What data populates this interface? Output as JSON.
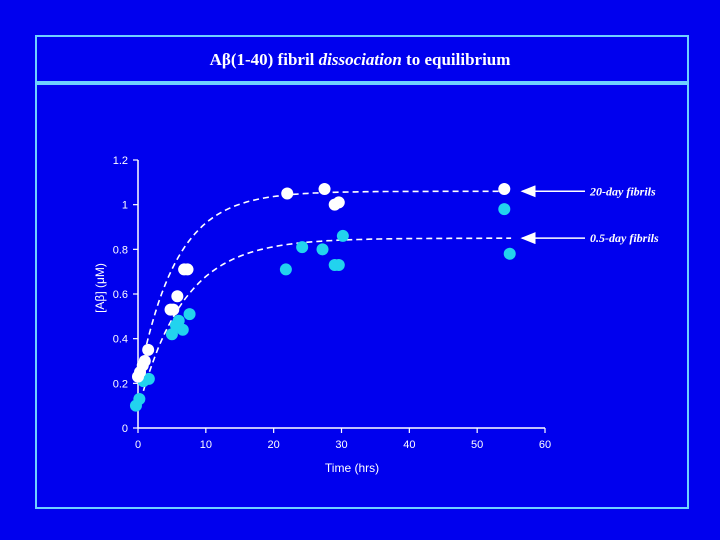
{
  "title": {
    "prefix": "Aβ(1-40) fibril ",
    "emphasis": "dissociation",
    "suffix": " to equilibrium"
  },
  "colors": {
    "background": "#0000ee",
    "frame": "#6fd0ff",
    "series_20day": "#ffffff",
    "series_05day": "#22d3ee"
  },
  "chart_data": {
    "type": "scatter",
    "xlabel": "Time (hrs)",
    "ylabel": "[Aβ] (μM)",
    "xlim": [
      0,
      60
    ],
    "ylim": [
      0,
      1.2
    ],
    "xticks": [
      "0",
      "10",
      "20",
      "30",
      "40",
      "50",
      "60"
    ],
    "yticks": [
      "0",
      "0.2",
      "0.4",
      "0.6",
      "0.8",
      "1",
      "1.2"
    ],
    "grid": false,
    "series": [
      {
        "name": "20-day fibrils",
        "color": "#ffffff",
        "points": [
          [
            0,
            0.23
          ],
          [
            0.3,
            0.25
          ],
          [
            0.7,
            0.28
          ],
          [
            1,
            0.3
          ],
          [
            1.5,
            0.35
          ],
          [
            4.8,
            0.53
          ],
          [
            5.2,
            0.53
          ],
          [
            5.8,
            0.59
          ],
          [
            6.8,
            0.71
          ],
          [
            7.3,
            0.71
          ],
          [
            22,
            1.05
          ],
          [
            27.5,
            1.07
          ],
          [
            29,
            1.0
          ],
          [
            29.6,
            1.01
          ],
          [
            54,
            1.07
          ]
        ],
        "fit": {
          "plateau": 1.06,
          "start": 0.2,
          "rate": 0.18
        }
      },
      {
        "name": "0.5-day fibrils",
        "color": "#22d3ee",
        "points": [
          [
            -0.3,
            0.1
          ],
          [
            0.2,
            0.13
          ],
          [
            0.8,
            0.21
          ],
          [
            1.6,
            0.22
          ],
          [
            5.0,
            0.42
          ],
          [
            5.6,
            0.46
          ],
          [
            6.0,
            0.48
          ],
          [
            6.6,
            0.44
          ],
          [
            7.6,
            0.51
          ],
          [
            21.8,
            0.71
          ],
          [
            24.2,
            0.81
          ],
          [
            27.2,
            0.8
          ],
          [
            29,
            0.73
          ],
          [
            29.6,
            0.73
          ],
          [
            30.2,
            0.86
          ],
          [
            54,
            0.98
          ],
          [
            54.8,
            0.78
          ]
        ],
        "fit": {
          "plateau": 0.85,
          "start": 0.08,
          "rate": 0.15
        }
      }
    ],
    "annotations": [
      {
        "text": "20-day fibrils",
        "y": 1.06
      },
      {
        "text": "0.5-day fibrils",
        "y": 0.85
      }
    ]
  }
}
